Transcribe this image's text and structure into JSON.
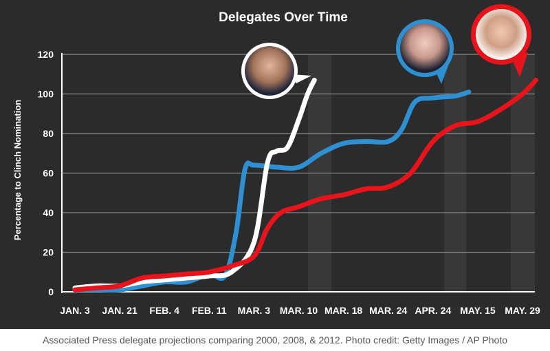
{
  "chart_data": {
    "type": "line",
    "title": "Delegates Over Time",
    "ylabel": "Percentage to Clinch Nomination",
    "xlabel": "",
    "ylim": [
      0,
      120
    ],
    "yticks": [
      0,
      20,
      40,
      60,
      80,
      100,
      120
    ],
    "categories": [
      "JAN. 3",
      "JAN. 21",
      "FEB. 4",
      "FEB. 11",
      "MAR. 3",
      "MAR. 10",
      "MAR. 18",
      "MAR. 24",
      "APR. 24",
      "MAY. 15",
      "MAY. 29"
    ],
    "grid": true,
    "series": [
      {
        "color": "#ffffff",
        "icon": "bush-portrait",
        "points": [
          [
            0,
            2
          ],
          [
            0.5,
            3
          ],
          [
            1,
            3
          ],
          [
            1.5,
            5
          ],
          [
            2,
            6
          ],
          [
            2.5,
            7
          ],
          [
            3,
            8
          ],
          [
            3.5,
            10
          ],
          [
            4,
            25
          ],
          [
            4.3,
            65
          ],
          [
            4.5,
            71
          ],
          [
            4.75,
            73
          ],
          [
            5,
            87
          ],
          [
            5.2,
            100
          ],
          [
            5.35,
            107
          ]
        ]
      },
      {
        "color": "#2e8fd1",
        "icon": "mccain-portrait",
        "points": [
          [
            0,
            1
          ],
          [
            0.5,
            1
          ],
          [
            1,
            1
          ],
          [
            1.5,
            3
          ],
          [
            2,
            5
          ],
          [
            2.5,
            5
          ],
          [
            3,
            9
          ],
          [
            3.35,
            8
          ],
          [
            3.6,
            30
          ],
          [
            3.8,
            62
          ],
          [
            4,
            64
          ],
          [
            4.5,
            63
          ],
          [
            5,
            63
          ],
          [
            5.5,
            70
          ],
          [
            6,
            75
          ],
          [
            6.5,
            76
          ],
          [
            7,
            76
          ],
          [
            7.3,
            82
          ],
          [
            7.6,
            96
          ],
          [
            8,
            98
          ],
          [
            8.5,
            99
          ],
          [
            8.8,
            101
          ]
        ]
      },
      {
        "color": "#e8141b",
        "icon": "romney-portrait",
        "points": [
          [
            0,
            1
          ],
          [
            0.5,
            2
          ],
          [
            1,
            3
          ],
          [
            1.5,
            7
          ],
          [
            2,
            8
          ],
          [
            2.5,
            9
          ],
          [
            3,
            10
          ],
          [
            3.5,
            13
          ],
          [
            4,
            18
          ],
          [
            4.3,
            32
          ],
          [
            4.6,
            40
          ],
          [
            5,
            43
          ],
          [
            5.5,
            47
          ],
          [
            6,
            49
          ],
          [
            6.5,
            52
          ],
          [
            7,
            53
          ],
          [
            7.5,
            60
          ],
          [
            8,
            76
          ],
          [
            8.5,
            84
          ],
          [
            9,
            86
          ],
          [
            9.5,
            92
          ],
          [
            10,
            100
          ],
          [
            10.3,
            107
          ]
        ]
      }
    ]
  },
  "caption": "Associated Press delegate projections comparing 2000, 2008, & 2012. Photo credit: Getty Images / AP Photo",
  "colors": {
    "background": "#2b2b2b",
    "shade": "#383838",
    "grid": "#8a8a8a",
    "axis": "#ffffff"
  }
}
